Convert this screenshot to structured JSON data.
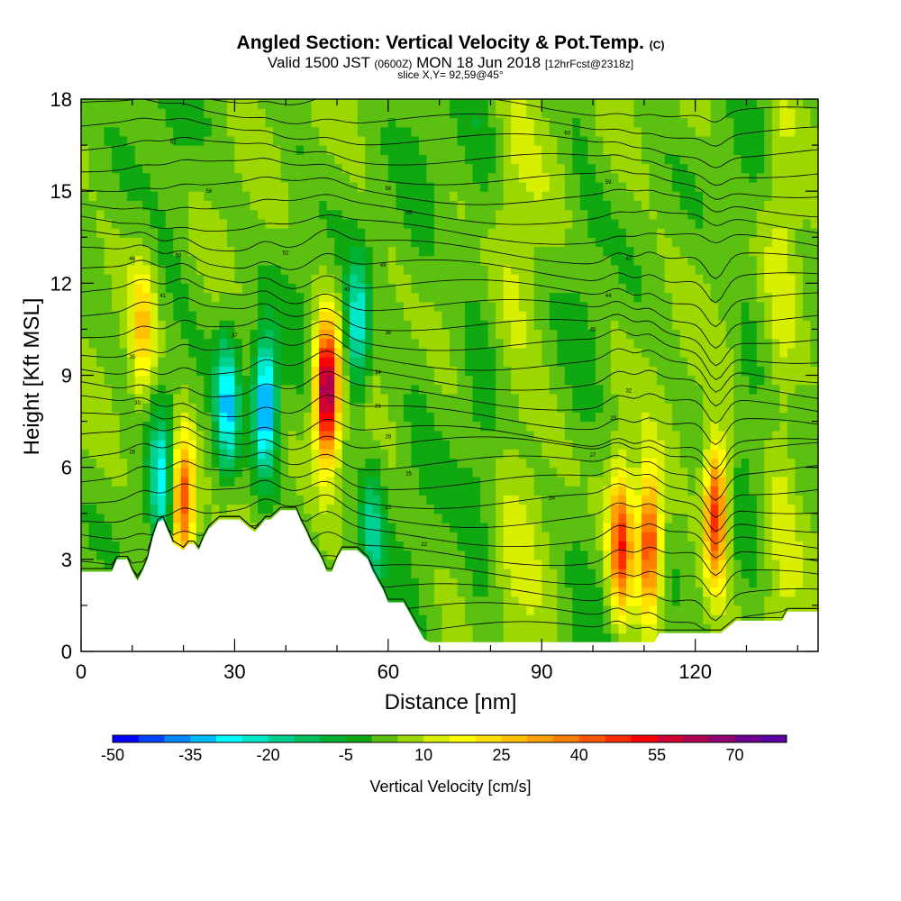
{
  "header": {
    "title_main": "Angled Section: Vertical Velocity & Pot.Temp.",
    "title_unit": "(C)",
    "subtitle_a": "Valid 1500 JST",
    "subtitle_b": "(0600Z)",
    "subtitle_c": "MON 18 Jun 2018",
    "subtitle_d": "[12hrFcst@2318z]",
    "slice_info": "slice X,Y= 92,59@45°"
  },
  "chart_data": {
    "type": "heatmap",
    "title": "Angled Section: Vertical Velocity & Pot.Temp. (C)",
    "subtitle": "Valid 1500 JST (0600Z) MON 18 Jun 2018 [12hrFcst@2318z]",
    "xlabel": "Distance [nm]",
    "ylabel": "Height [Kft MSL]",
    "xlim": [
      0,
      144
    ],
    "ylim": [
      0,
      18
    ],
    "x_ticks": [
      0,
      30,
      60,
      90,
      120
    ],
    "y_ticks": [
      0,
      3,
      6,
      9,
      12,
      15,
      18
    ],
    "colorbar": {
      "label": "Vertical Velocity [cm/s]",
      "tick_labels": [
        "-50",
        "-35",
        "-20",
        "-5",
        "10",
        "25",
        "40",
        "55",
        "70"
      ],
      "levels_start": -50,
      "level_step": 5,
      "colors": [
        "#0000ff",
        "#0044ff",
        "#0088ff",
        "#00bbff",
        "#00ffff",
        "#00e8c8",
        "#00d090",
        "#00c060",
        "#00b030",
        "#10a810",
        "#5cc010",
        "#9cd800",
        "#d8f000",
        "#ffff00",
        "#ffe000",
        "#ffc000",
        "#ffa000",
        "#ff8000",
        "#ff5800",
        "#ff2c00",
        "#ff0000",
        "#d00030",
        "#b00050",
        "#900070",
        "#700090",
        "#5a00a0"
      ]
    },
    "terrain_kft": [
      [
        0,
        2.6
      ],
      [
        6,
        2.6
      ],
      [
        7,
        3.0
      ],
      [
        9,
        3.0
      ],
      [
        10,
        2.6
      ],
      [
        11,
        2.3
      ],
      [
        12,
        2.6
      ],
      [
        13,
        3.0
      ],
      [
        14,
        3.7
      ],
      [
        15,
        4.2
      ],
      [
        16,
        4.3
      ],
      [
        17,
        3.9
      ],
      [
        18,
        3.5
      ],
      [
        20,
        3.3
      ],
      [
        21,
        3.5
      ],
      [
        22,
        3.5
      ],
      [
        23,
        3.3
      ],
      [
        24,
        3.7
      ],
      [
        25,
        4.0
      ],
      [
        27,
        4.3
      ],
      [
        31,
        4.3
      ],
      [
        33,
        4.0
      ],
      [
        34,
        3.9
      ],
      [
        36,
        4.3
      ],
      [
        37,
        4.3
      ],
      [
        39,
        4.6
      ],
      [
        42,
        4.6
      ],
      [
        43,
        4.2
      ],
      [
        44,
        3.9
      ],
      [
        45,
        3.5
      ],
      [
        46,
        3.3
      ],
      [
        47,
        3.0
      ],
      [
        48,
        2.6
      ],
      [
        49,
        2.6
      ],
      [
        50,
        3.0
      ],
      [
        51,
        3.3
      ],
      [
        54,
        3.3
      ],
      [
        56,
        3.0
      ],
      [
        57,
        2.6
      ],
      [
        58,
        2.3
      ],
      [
        59,
        2.0
      ],
      [
        60,
        1.6
      ],
      [
        63,
        1.6
      ],
      [
        64,
        1.3
      ],
      [
        65,
        1.0
      ],
      [
        66,
        0.7
      ],
      [
        67,
        0.4
      ],
      [
        68,
        0.3
      ],
      [
        97,
        0.3
      ],
      [
        100,
        0.3
      ],
      [
        112,
        0.3
      ],
      [
        113,
        0.6
      ],
      [
        125,
        0.6
      ],
      [
        128,
        1.0
      ],
      [
        137,
        1.0
      ],
      [
        138,
        1.3
      ],
      [
        144,
        1.3
      ]
    ],
    "vertical_velocity_cells": [
      {
        "x": 48,
        "y": 8.5,
        "max_cm_s": 70
      },
      {
        "x": 20,
        "y": 5.0,
        "max_cm_s": 50
      },
      {
        "x": 105.5,
        "y": 3.5,
        "max_cm_s": 50
      },
      {
        "x": 111,
        "y": 3.5,
        "max_cm_s": 50
      },
      {
        "x": 124,
        "y": 4.5,
        "max_cm_s": 50
      },
      {
        "x": 12,
        "y": 10.5,
        "max_cm_s": 25
      },
      {
        "x": 36,
        "y": 8.0,
        "min_cm_s": -40
      },
      {
        "x": 28.5,
        "y": 8.0,
        "min_cm_s": -30
      },
      {
        "x": 54,
        "y": 10.5,
        "min_cm_s": -25
      },
      {
        "x": 15.5,
        "y": 5.5,
        "min_cm_s": -20
      },
      {
        "x": 57,
        "y": 4.0,
        "min_cm_s": -15
      }
    ],
    "isentrope_labels_c": [
      "62",
      "60",
      "59",
      "58",
      "56",
      "55",
      "52",
      "50",
      "49",
      "47",
      "46",
      "44",
      "43",
      "41",
      "40",
      "38",
      "37",
      "35",
      "34",
      "32",
      "31",
      "30",
      "29",
      "28",
      "27",
      "26",
      "25",
      "24",
      "23",
      "22"
    ]
  }
}
